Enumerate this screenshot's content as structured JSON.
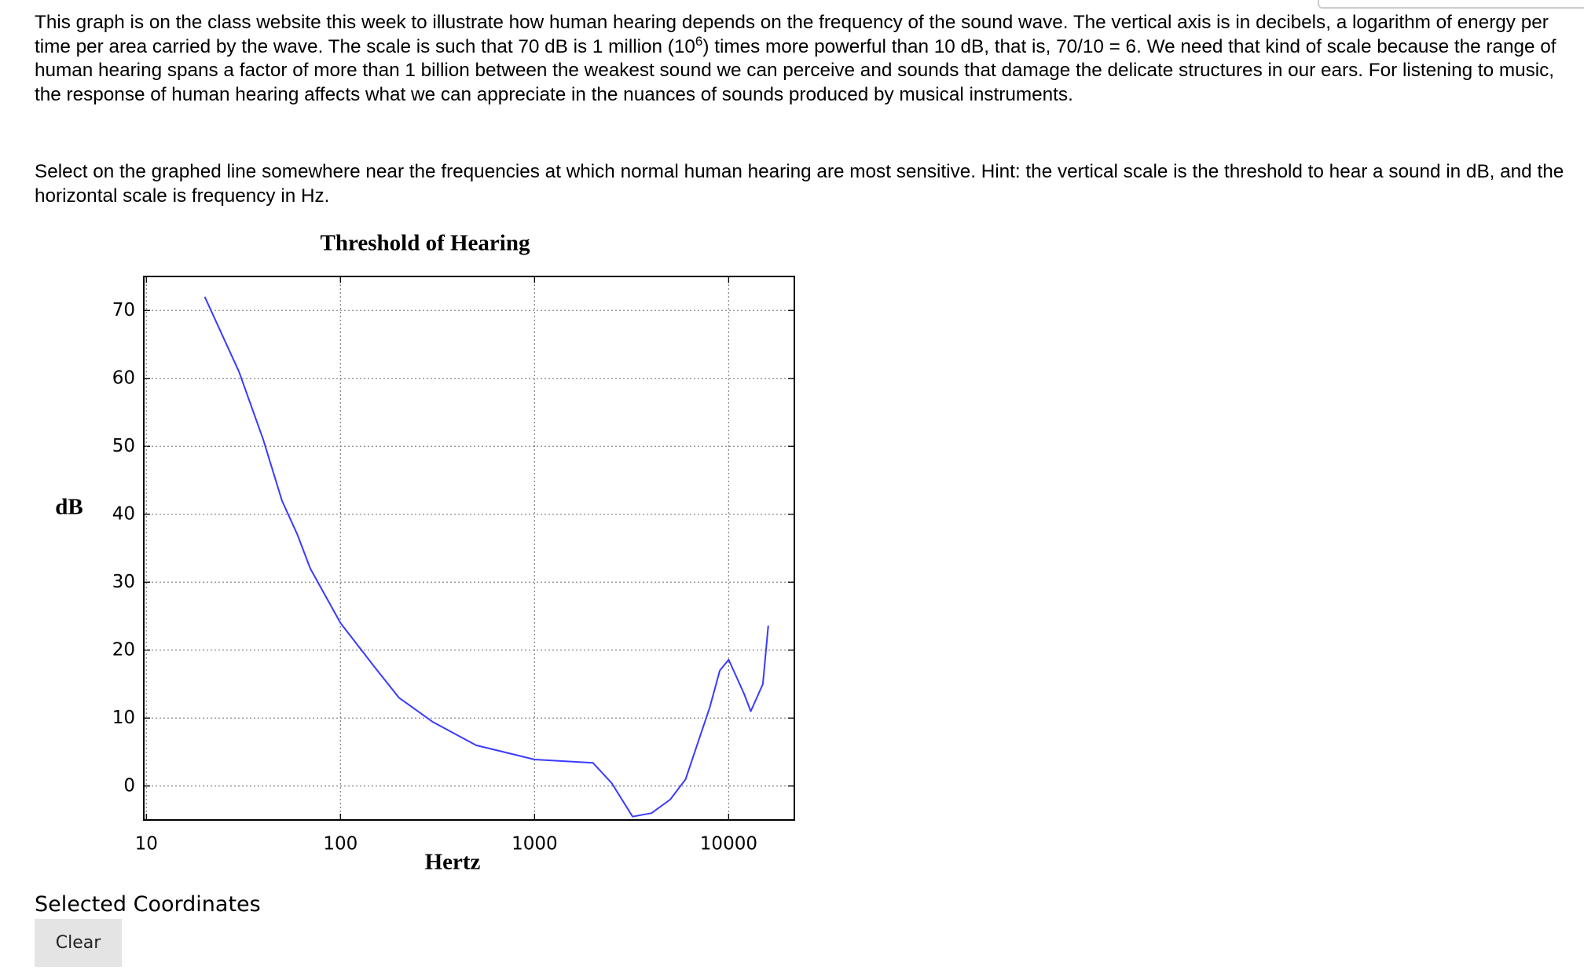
{
  "intro": {
    "before": "This graph is on the class website this week to illustrate how human hearing depends on the frequency of the sound wave.  The vertical axis is in decibels, a logarithm of energy per time per area carried by the wave.  The scale is such that 70 dB is 1 million (10",
    "sup": "6",
    "after": ") times more powerful than 10 dB, that is, 70/10 = 6.  We need that kind of scale because the range of human hearing spans a factor of more than 1 billion between the weakest sound we can perceive and sounds that damage the delicate structures in our ears.  For listening to music, the response of human hearing affects what we can appreciate in the nuances of sounds produced by musical instruments."
  },
  "instruction": "Select on the graphed line somewhere near the frequencies at which normal human hearing are most sensitive.  Hint: the vertical scale is the threshold to hear a sound in dB, and the horizontal scale is frequency in Hz.",
  "chart_data": {
    "type": "line",
    "title": "Threshold of Hearing",
    "x_label": "Hertz",
    "y_label": "dB",
    "x": [
      20,
      30,
      40,
      50,
      60,
      70,
      100,
      150,
      200,
      300,
      500,
      1000,
      2000,
      2500,
      3200,
      4000,
      5000,
      6000,
      8000,
      9000,
      10000,
      12000,
      13000,
      15000,
      16000
    ],
    "values": [
      72,
      61,
      51,
      42,
      37,
      32,
      24,
      17.5,
      13,
      9.4,
      6,
      3.9,
      3.4,
      0.4,
      -4.5,
      -4,
      -2,
      1,
      11.6,
      17,
      18.6,
      13.6,
      11,
      15,
      23.6
    ],
    "color": "#3a3aff",
    "log_x": true,
    "xlim": [
      9.7,
      21800
    ],
    "xticks": [
      10,
      100,
      1000,
      10000
    ],
    "ylim": [
      -5,
      75
    ],
    "yticks": [
      0,
      10,
      20,
      30,
      40,
      50,
      60,
      70
    ],
    "grid": true
  },
  "selected_label": "Selected Coordinates",
  "button": "Clear"
}
